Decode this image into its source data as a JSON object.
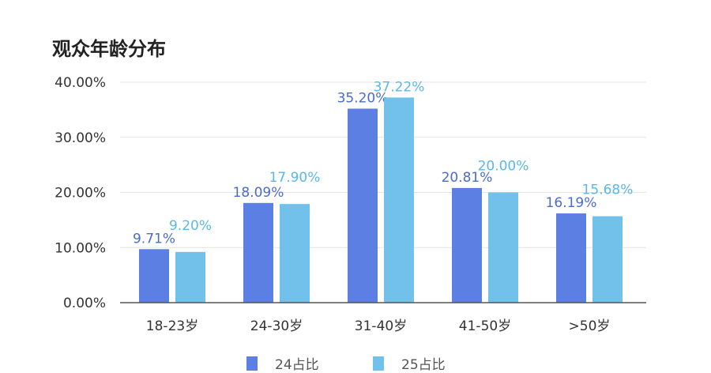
{
  "chart_data": {
    "type": "bar",
    "title": "观众年龄分布",
    "categories": [
      "18-23岁",
      "24-30岁",
      "31-40岁",
      "41-50岁",
      ">50岁"
    ],
    "series": [
      {
        "name": "24占比",
        "color": "#5b7fe3",
        "label_color": "#4a6bd1",
        "values": [
          9.71,
          18.09,
          35.2,
          20.81,
          16.19
        ],
        "labels": [
          "9.71%",
          "18.09%",
          "35.20%",
          "20.81%",
          "16.19%"
        ]
      },
      {
        "name": "25占比",
        "color": "#72c1ea",
        "label_color": "#5ab8e8",
        "values": [
          9.2,
          17.9,
          37.22,
          20.0,
          15.68
        ],
        "labels": [
          "9.20%",
          "17.90%",
          "37.22%",
          "20.00%",
          "15.68%"
        ]
      }
    ],
    "y_ticks": [
      "0.00%",
      "10.00%",
      "20.00%",
      "30.00%",
      "40.00%"
    ],
    "ylim": [
      0,
      40
    ],
    "grid": true,
    "legend": "bottom"
  }
}
